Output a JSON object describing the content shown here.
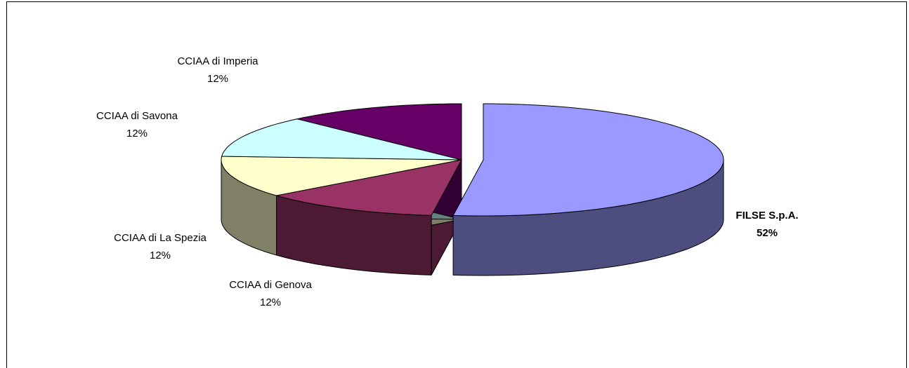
{
  "chart_data": {
    "type": "pie",
    "categories": [
      "FILSE S.p.A.",
      "CCIAA di Genova",
      "CCIAA di La Spezia",
      "CCIAA di Savona",
      "CCIAA di Imperia"
    ],
    "values": [
      52,
      12,
      12,
      12,
      12
    ],
    "value_labels": [
      "52%",
      "12%",
      "12%",
      "12%",
      "12%"
    ],
    "colors": [
      "#9999ff",
      "#993366",
      "#ffffcc",
      "#ccffff",
      "#660066"
    ]
  }
}
